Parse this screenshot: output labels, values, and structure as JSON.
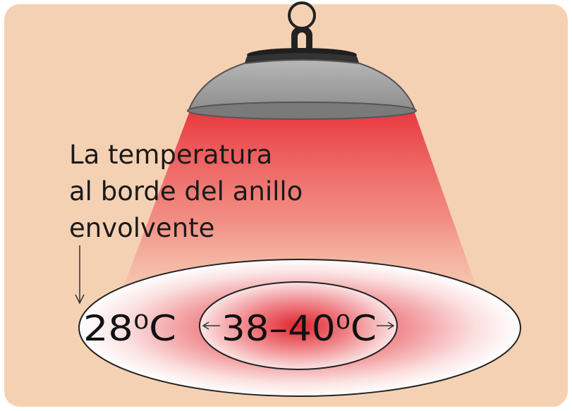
{
  "label": {
    "lines": [
      "La temperatura",
      "al borde del anillo",
      "envolvente"
    ]
  },
  "outer_temp": "28⁰C",
  "inner_temp": "38–40⁰C"
}
